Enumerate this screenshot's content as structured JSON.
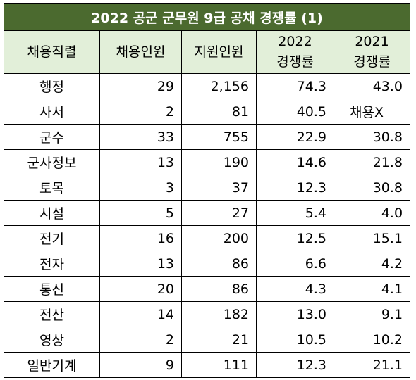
{
  "title": "2022 공군 군무원 9급 공채  경쟁률 (1)",
  "headers": {
    "col1": "채용직렬",
    "col2": "채용인원",
    "col3": "지원인원",
    "col4_line1": "2022",
    "col4_line2": "경쟁률",
    "col5_line1": "2021",
    "col5_line2": "경쟁률"
  },
  "rows": [
    {
      "name": "행정",
      "hire": "29",
      "applicants": "2,156",
      "rate2022": "74.3",
      "rate2021": "43.0"
    },
    {
      "name": "사서",
      "hire": "2",
      "applicants": "81",
      "rate2022": "40.5",
      "rate2021": "채용X"
    },
    {
      "name": "군수",
      "hire": "33",
      "applicants": "755",
      "rate2022": "22.9",
      "rate2021": "30.8"
    },
    {
      "name": "군사정보",
      "hire": "13",
      "applicants": "190",
      "rate2022": "14.6",
      "rate2021": "21.8"
    },
    {
      "name": "토목",
      "hire": "3",
      "applicants": "37",
      "rate2022": "12.3",
      "rate2021": "30.8"
    },
    {
      "name": "시설",
      "hire": "5",
      "applicants": "27",
      "rate2022": "5.4",
      "rate2021": "4.0"
    },
    {
      "name": "전기",
      "hire": "16",
      "applicants": "200",
      "rate2022": "12.5",
      "rate2021": "15.1"
    },
    {
      "name": "전자",
      "hire": "13",
      "applicants": "86",
      "rate2022": "6.6",
      "rate2021": "4.2"
    },
    {
      "name": "통신",
      "hire": "20",
      "applicants": "86",
      "rate2022": "4.3",
      "rate2021": "4.1"
    },
    {
      "name": "전산",
      "hire": "14",
      "applicants": "182",
      "rate2022": "13.0",
      "rate2021": "9.1"
    },
    {
      "name": "영상",
      "hire": "2",
      "applicants": "21",
      "rate2022": "10.5",
      "rate2021": "10.2"
    },
    {
      "name": "일반기계",
      "hire": "9",
      "applicants": "111",
      "rate2022": "12.3",
      "rate2021": "21.1"
    }
  ],
  "colors": {
    "title_bg": "#4b6a2f",
    "title_text": "#ffffff",
    "header_bg": "#e2efd9",
    "border": "#000000"
  }
}
